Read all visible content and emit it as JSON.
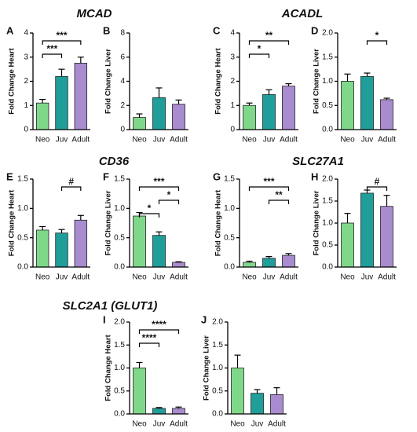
{
  "headings": [
    "MCAD",
    "ACADL",
    "CD36",
    "SLC27A1",
    "SLC2A1 (GLUT1)"
  ],
  "chart_data": [
    {
      "type": "bar",
      "panel": "A",
      "ylabel": "Fold Change Heart",
      "categories": [
        "Neo",
        "Juv",
        "Adult"
      ],
      "values": [
        1.1,
        2.2,
        2.75
      ],
      "errors": [
        0.15,
        0.3,
        0.25
      ],
      "colors": [
        "#7fd88a",
        "#1f9e9a",
        "#a98bd0"
      ],
      "ylim": [
        0,
        4
      ],
      "yticks": [
        0,
        1,
        2,
        3,
        4
      ],
      "comparisons": [
        {
          "from": 0,
          "to": 1,
          "label": "***"
        },
        {
          "from": 0,
          "to": 2,
          "label": "***"
        }
      ]
    },
    {
      "type": "bar",
      "panel": "B",
      "ylabel": "Fold Change Liver",
      "categories": [
        "Neo",
        "Juv",
        "Adult"
      ],
      "values": [
        1.0,
        2.65,
        2.1
      ],
      "errors": [
        0.3,
        0.8,
        0.35
      ],
      "colors": [
        "#7fd88a",
        "#1f9e9a",
        "#a98bd0"
      ],
      "ylim": [
        0,
        8
      ],
      "yticks": [
        0,
        2,
        4,
        6,
        8
      ],
      "comparisons": []
    },
    {
      "type": "bar",
      "panel": "C",
      "ylabel": "Fold Change Heart",
      "categories": [
        "Neo",
        "Juv",
        "Adult"
      ],
      "values": [
        1.0,
        1.45,
        1.8
      ],
      "errors": [
        0.1,
        0.2,
        0.1
      ],
      "colors": [
        "#7fd88a",
        "#1f9e9a",
        "#a98bd0"
      ],
      "ylim": [
        0,
        4
      ],
      "yticks": [
        0,
        1,
        2,
        3,
        4
      ],
      "comparisons": [
        {
          "from": 0,
          "to": 1,
          "label": "*"
        },
        {
          "from": 0,
          "to": 2,
          "label": "**"
        }
      ]
    },
    {
      "type": "bar",
      "panel": "D",
      "ylabel": "Fold Change Liver",
      "categories": [
        "Neo",
        "Juv",
        "Adult"
      ],
      "values": [
        1.0,
        1.1,
        0.62
      ],
      "errors": [
        0.15,
        0.07,
        0.03
      ],
      "colors": [
        "#7fd88a",
        "#1f9e9a",
        "#a98bd0"
      ],
      "ylim": [
        0,
        2
      ],
      "yticks": [
        {
          "value": 0,
          "label": "0.0"
        },
        0.5,
        {
          "value": 1,
          "label": "1.0"
        },
        1.5,
        {
          "value": 2,
          "label": "2.0"
        }
      ],
      "comparisons": [
        {
          "from": 1,
          "to": 2,
          "label": "*"
        }
      ]
    },
    {
      "type": "bar",
      "panel": "E",
      "ylabel": "Fold Change Heart",
      "categories": [
        "Neo",
        "Juv",
        "Adult"
      ],
      "values": [
        0.63,
        0.58,
        0.8
      ],
      "errors": [
        0.06,
        0.06,
        0.08
      ],
      "colors": [
        "#7fd88a",
        "#1f9e9a",
        "#a98bd0"
      ],
      "ylim": [
        0,
        1.5
      ],
      "yticks": [
        {
          "value": 0,
          "label": "0.0"
        },
        0.5,
        {
          "value": 1,
          "label": "1.0"
        },
        1.5
      ],
      "comparisons": [
        {
          "from": 1,
          "to": 2,
          "label": "#"
        }
      ]
    },
    {
      "type": "bar",
      "panel": "F",
      "ylabel": "Fold Change Liver",
      "categories": [
        "Neo",
        "Juv",
        "Adult"
      ],
      "values": [
        0.87,
        0.54,
        0.08
      ],
      "errors": [
        0.06,
        0.06,
        0.01
      ],
      "colors": [
        "#7fd88a",
        "#1f9e9a",
        "#a98bd0"
      ],
      "ylim": [
        0,
        1.5
      ],
      "yticks": [
        {
          "value": 0,
          "label": "0.0"
        },
        0.5,
        {
          "value": 1,
          "label": "1.0"
        },
        1.5
      ],
      "comparisons": [
        {
          "from": 0,
          "to": 1,
          "label": "*"
        },
        {
          "from": 1,
          "to": 2,
          "label": "*"
        },
        {
          "from": 0,
          "to": 2,
          "label": "***"
        }
      ]
    },
    {
      "type": "bar",
      "panel": "G",
      "ylabel": "Fold Change Heart",
      "categories": [
        "Neo",
        "Juv",
        "Adult"
      ],
      "values": [
        0.08,
        0.15,
        0.2
      ],
      "errors": [
        0.02,
        0.03,
        0.03
      ],
      "colors": [
        "#7fd88a",
        "#1f9e9a",
        "#a98bd0"
      ],
      "ylim": [
        0,
        1.5
      ],
      "yticks": [
        {
          "value": 0,
          "label": "0.0"
        },
        0.5,
        {
          "value": 1,
          "label": "1.0"
        },
        1.5
      ],
      "comparisons": [
        {
          "from": 1,
          "to": 2,
          "label": "**"
        },
        {
          "from": 0,
          "to": 2,
          "label": "***"
        }
      ]
    },
    {
      "type": "bar",
      "panel": "H",
      "ylabel": "Fold Change Liver",
      "categories": [
        "Neo",
        "Juv",
        "Adult"
      ],
      "values": [
        1.0,
        1.68,
        1.38
      ],
      "errors": [
        0.22,
        0.07,
        0.25
      ],
      "colors": [
        "#7fd88a",
        "#1f9e9a",
        "#a98bd0"
      ],
      "ylim": [
        0,
        2
      ],
      "yticks": [
        {
          "value": 0,
          "label": "0.0"
        },
        0.5,
        {
          "value": 1,
          "label": "1.0"
        },
        1.5,
        {
          "value": 2,
          "label": "2.0"
        }
      ],
      "comparisons": [
        {
          "from": 1,
          "to": 2,
          "label": "#"
        }
      ]
    },
    {
      "type": "bar",
      "panel": "I",
      "ylabel": "Fold Change Heart",
      "categories": [
        "Neo",
        "Juv",
        "Adult"
      ],
      "values": [
        1.0,
        0.12,
        0.12
      ],
      "errors": [
        0.12,
        0.02,
        0.03
      ],
      "colors": [
        "#7fd88a",
        "#1f9e9a",
        "#a98bd0"
      ],
      "ylim": [
        0,
        2
      ],
      "yticks": [
        {
          "value": 0,
          "label": "0.0"
        },
        0.5,
        {
          "value": 1,
          "label": "1.0"
        },
        1.5,
        {
          "value": 2,
          "label": "2.0"
        }
      ],
      "comparisons": [
        {
          "from": 0,
          "to": 1,
          "label": "****"
        },
        {
          "from": 0,
          "to": 2,
          "label": "****"
        }
      ]
    },
    {
      "type": "bar",
      "panel": "J",
      "ylabel": "Fold Change Liver",
      "categories": [
        "Neo",
        "Juv",
        "Adult"
      ],
      "values": [
        1.0,
        0.45,
        0.42
      ],
      "errors": [
        0.28,
        0.08,
        0.15
      ],
      "colors": [
        "#7fd88a",
        "#1f9e9a",
        "#a98bd0"
      ],
      "ylim": [
        0,
        2
      ],
      "yticks": [
        {
          "value": 0,
          "label": "0.0"
        },
        0.5,
        {
          "value": 1,
          "label": "1.0"
        },
        1.5,
        {
          "value": 2,
          "label": "2.0"
        }
      ],
      "comparisons": []
    }
  ]
}
